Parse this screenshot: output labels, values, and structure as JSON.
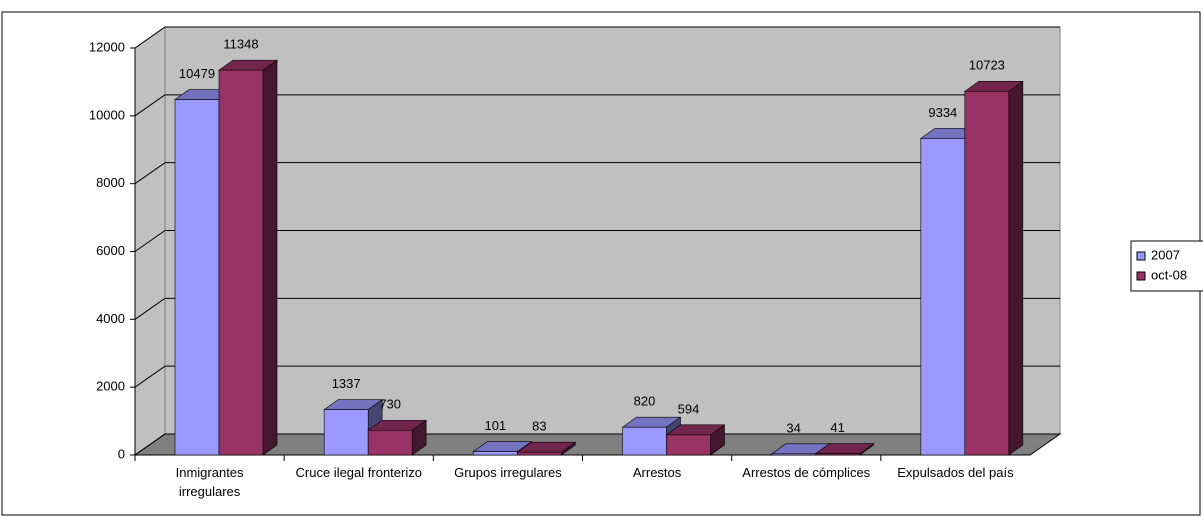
{
  "chart_data": {
    "type": "bar3d",
    "categories": [
      "Inmigrantes irregulares",
      "Cruce ilegal fronterizo",
      "Grupos irregulares",
      "Arrestos",
      "Arrestos de cómplices",
      "Expulsados del país"
    ],
    "series": [
      {
        "name": "2007",
        "color": "#9999ff",
        "values": [
          10479,
          1337,
          101,
          820,
          34,
          9334
        ]
      },
      {
        "name": "oct-08",
        "color": "#993366",
        "values": [
          11348,
          730,
          83,
          594,
          41,
          10723
        ]
      }
    ],
    "ylim": [
      0,
      12000
    ],
    "yticks": [
      0,
      2000,
      4000,
      6000,
      8000,
      10000,
      12000
    ],
    "grid": true,
    "legend": "right"
  }
}
